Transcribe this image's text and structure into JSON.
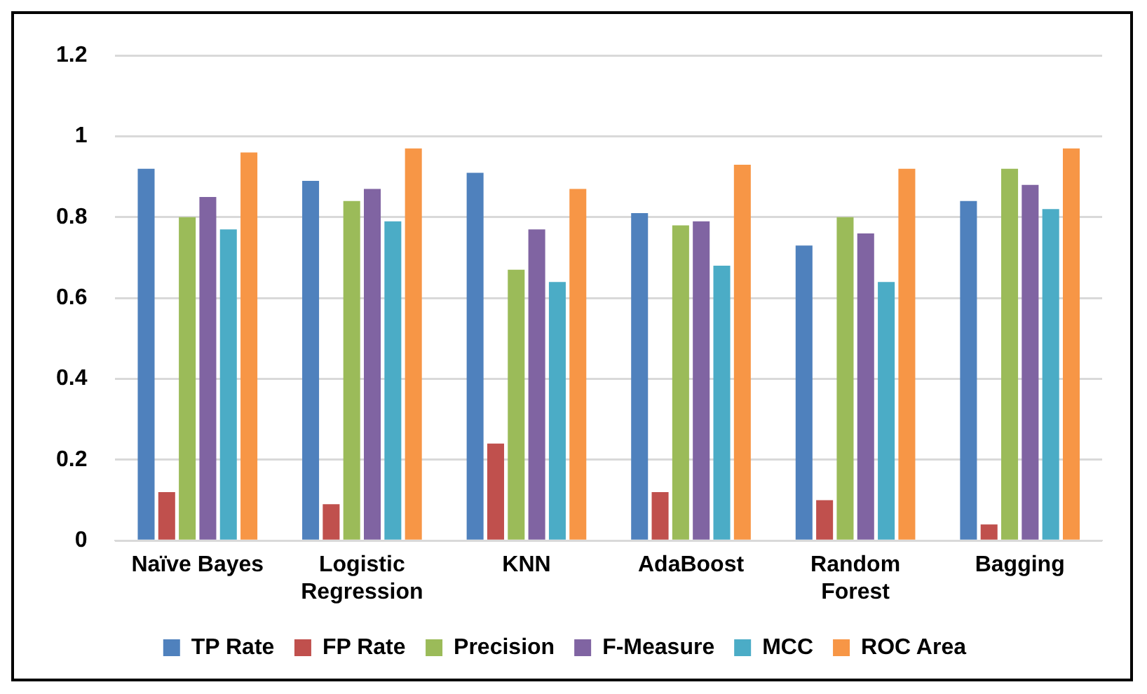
{
  "chart_data": {
    "type": "bar",
    "categories": [
      "Naïve Bayes",
      "Logistic Regression",
      "KNN",
      "AdaBoost",
      "Random Forest",
      "Bagging"
    ],
    "series": [
      {
        "name": "TP Rate",
        "color": "#4f81bd",
        "values": [
          0.92,
          0.89,
          0.91,
          0.81,
          0.73,
          0.84
        ]
      },
      {
        "name": "FP Rate",
        "color": "#c0504d",
        "values": [
          0.12,
          0.09,
          0.24,
          0.12,
          0.1,
          0.04
        ]
      },
      {
        "name": "Precision",
        "color": "#9bbb59",
        "values": [
          0.8,
          0.84,
          0.67,
          0.78,
          0.8,
          0.92
        ]
      },
      {
        "name": "F-Measure",
        "color": "#8064a2",
        "values": [
          0.85,
          0.87,
          0.77,
          0.79,
          0.76,
          0.88
        ]
      },
      {
        "name": "MCC",
        "color": "#4bacc6",
        "values": [
          0.77,
          0.79,
          0.64,
          0.68,
          0.64,
          0.82
        ]
      },
      {
        "name": "ROC Area",
        "color": "#f79646",
        "values": [
          0.96,
          0.97,
          0.87,
          0.93,
          0.92,
          0.97
        ]
      }
    ],
    "ylim": [
      0,
      1.2
    ],
    "yticks": [
      0,
      0.2,
      0.4,
      0.6,
      0.8,
      1,
      1.2
    ],
    "grid": "y",
    "legend": "bottom"
  }
}
